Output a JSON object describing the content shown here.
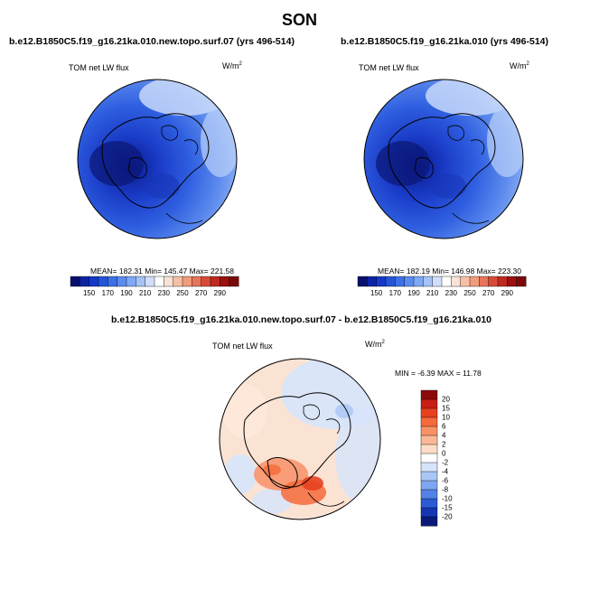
{
  "title": "SON",
  "panels": [
    {
      "name": "new-topo",
      "title": "b.e12.B1850C5.f19_g16.21ka.010.new.topo.surf.07 (yrs 496-514)",
      "variable": "TOM net LW flux",
      "units_base": "W/m",
      "units_exp": "2",
      "stats": "MEAN= 182.31  Min= 145.47  Max= 221.58"
    },
    {
      "name": "control",
      "title": "b.e12.B1850C5.f19_g16.21ka.010 (yrs 496-514)",
      "variable": "TOM net LW flux",
      "units_base": "W/m",
      "units_exp": "2",
      "stats": "MEAN= 182.19  Min= 146.98  Max= 223.30"
    }
  ],
  "colorbar_abs": {
    "labels": [
      "150",
      "170",
      "190",
      "210",
      "230",
      "250",
      "270",
      "290"
    ],
    "colors": [
      "#08106e",
      "#0d23a6",
      "#1638c8",
      "#2455d8",
      "#3c70e6",
      "#5a8cf0",
      "#7fa8f5",
      "#a6c3f8",
      "#cfdefb",
      "#ffffff",
      "#fbe2d6",
      "#f7c0a6",
      "#f19c7b",
      "#e8745a",
      "#d84a37",
      "#bf2a1f",
      "#9c1010",
      "#7a0808"
    ]
  },
  "diff": {
    "title": "b.e12.B1850C5.f19_g16.21ka.010.new.topo.surf.07 - b.e12.B1850C5.f19_g16.21ka.010",
    "variable": "TOM net LW flux",
    "units_base": "W/m",
    "units_exp": "2",
    "stats": "MIN =  -6.39 MAX =  11.78"
  },
  "colorbar_diff": {
    "labels": [
      "20",
      "15",
      "10",
      "6",
      "4",
      "2",
      "0",
      "-2",
      "-4",
      "-6",
      "-8",
      "-10",
      "-15",
      "-20"
    ],
    "colors": [
      "#8b0a0a",
      "#c81e14",
      "#e8401f",
      "#f46a3a",
      "#f89167",
      "#fbb896",
      "#fddcc9",
      "#ffffff",
      "#d6e4fb",
      "#a9c6f6",
      "#7ea6f0",
      "#5382e6",
      "#2c5bd6",
      "#1436b2",
      "#0a1a7a"
    ]
  },
  "chart_data": [
    {
      "type": "heatmap",
      "title": "b.e12.B1850C5.f19_g16.21ka.010.new.topo.surf.07 (yrs 496-514)",
      "variable": "TOM net LW flux",
      "units": "W/m2",
      "projection": "north-polar-stereographic",
      "mean": 182.31,
      "min": 145.47,
      "max": 221.58,
      "colorbar_levels": [
        150,
        170,
        190,
        210,
        230,
        250,
        270,
        290
      ]
    },
    {
      "type": "heatmap",
      "title": "b.e12.B1850C5.f19_g16.21ka.010 (yrs 496-514)",
      "variable": "TOM net LW flux",
      "units": "W/m2",
      "projection": "north-polar-stereographic",
      "mean": 182.19,
      "min": 146.98,
      "max": 223.3,
      "colorbar_levels": [
        150,
        170,
        190,
        210,
        230,
        250,
        270,
        290
      ]
    },
    {
      "type": "heatmap",
      "title": "b.e12.B1850C5.f19_g16.21ka.010.new.topo.surf.07 - b.e12.B1850C5.f19_g16.21ka.010",
      "variable": "TOM net LW flux",
      "units": "W/m2",
      "projection": "north-polar-stereographic",
      "min": -6.39,
      "max": 11.78,
      "colorbar_levels": [
        20,
        15,
        10,
        6,
        4,
        2,
        0,
        -2,
        -4,
        -6,
        -8,
        -10,
        -15,
        -20
      ]
    }
  ]
}
